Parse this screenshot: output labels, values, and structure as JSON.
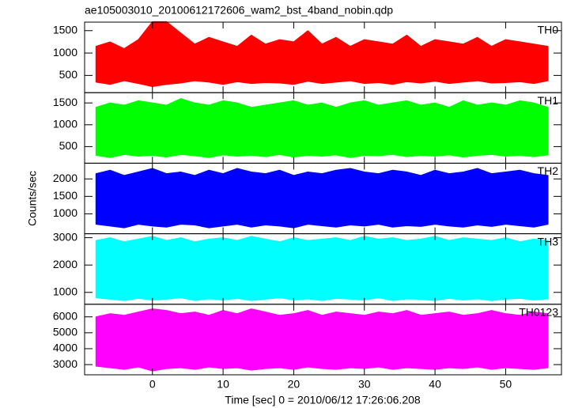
{
  "chart_data": {
    "type": "band",
    "title": "ae105003010_20100612172606_wam2_bst_4band_nobin.qdp",
    "xlabel": "Time [sec] 0 = 2010/06/12 17:26:06.208",
    "ylabel": "Counts/sec",
    "xlim": [
      -9.6,
      57.9
    ],
    "xticks": [
      0,
      10,
      20,
      30,
      40,
      50
    ],
    "x": [
      -8,
      -6,
      -4,
      -2,
      0,
      2,
      4,
      6,
      8,
      10,
      12,
      14,
      16,
      18,
      20,
      22,
      24,
      26,
      28,
      30,
      32,
      34,
      36,
      38,
      40,
      42,
      44,
      46,
      48,
      50,
      52,
      54,
      56
    ],
    "series": [
      {
        "name": "TH0",
        "color": "#ff0000",
        "ylim": [
          115,
          1690
        ],
        "yticks": [
          500,
          1000,
          1500
        ],
        "high": [
          1150,
          1250,
          1100,
          1300,
          1700,
          1700,
          1450,
          1200,
          1350,
          1250,
          1150,
          1400,
          1200,
          1300,
          1250,
          1500,
          1200,
          1350,
          1150,
          1300,
          1250,
          1200,
          1400,
          1150,
          1300,
          1250,
          1200,
          1350,
          1150,
          1300,
          1250,
          1200,
          1150
        ],
        "low": [
          350,
          300,
          380,
          320,
          250,
          300,
          330,
          380,
          350,
          300,
          360,
          320,
          340,
          330,
          300,
          370,
          320,
          350,
          380,
          320,
          340,
          300,
          360,
          330,
          370,
          320,
          350,
          380,
          330,
          340,
          360,
          320,
          380
        ]
      },
      {
        "name": "TH1",
        "color": "#00ff00",
        "ylim": [
          120,
          1735
        ],
        "yticks": [
          500,
          1000,
          1500
        ],
        "high": [
          1400,
          1500,
          1450,
          1550,
          1500,
          1450,
          1600,
          1500,
          1450,
          1550,
          1500,
          1400,
          1450,
          1500,
          1550,
          1450,
          1500,
          1400,
          1500,
          1550,
          1450,
          1500,
          1550,
          1450,
          1500,
          1400,
          1550,
          1450,
          1500,
          1450,
          1550,
          1500,
          1400
        ],
        "low": [
          300,
          250,
          320,
          280,
          300,
          260,
          320,
          290,
          250,
          310,
          280,
          300,
          270,
          320,
          260,
          300,
          280,
          310,
          250,
          300,
          290,
          320,
          270,
          300,
          280,
          310,
          260,
          300,
          320,
          280,
          300,
          270,
          310
        ]
      },
      {
        "name": "TH2",
        "color": "#0000ff",
        "ylim": [
          430,
          2450
        ],
        "yticks": [
          1000,
          1500,
          2000
        ],
        "high": [
          2150,
          2250,
          2100,
          2200,
          2300,
          2150,
          2200,
          2100,
          2250,
          2150,
          2300,
          2200,
          2150,
          2250,
          2100,
          2200,
          2150,
          2250,
          2300,
          2200,
          2150,
          2250,
          2200,
          2100,
          2250,
          2150,
          2200,
          2300,
          2150,
          2200,
          2250,
          2150,
          2100
        ],
        "low": [
          700,
          650,
          600,
          700,
          650,
          620,
          700,
          680,
          600,
          650,
          700,
          620,
          680,
          650,
          600,
          700,
          660,
          620,
          680,
          650,
          700,
          620,
          660,
          640,
          700,
          650,
          620,
          680,
          640,
          700,
          660,
          620,
          700
        ]
      },
      {
        "name": "TH3",
        "color": "#00ffff",
        "ylim": [
          565,
          3145
        ],
        "yticks": [
          1000,
          2000,
          3000
        ],
        "high": [
          2900,
          3000,
          2850,
          2950,
          3050,
          2900,
          3000,
          2850,
          2950,
          3000,
          2900,
          3050,
          2950,
          2850,
          3000,
          2900,
          2950,
          3000,
          2900,
          3050,
          2950,
          3000,
          2900,
          2950,
          3050,
          2900,
          3000,
          2950,
          2900,
          3000,
          2850,
          2950,
          2900
        ],
        "low": [
          800,
          750,
          700,
          780,
          720,
          750,
          800,
          700,
          760,
          720,
          780,
          700,
          750,
          800,
          720,
          760,
          700,
          780,
          750,
          720,
          800,
          700,
          760,
          740,
          700,
          780,
          720,
          760,
          700,
          750,
          780,
          720,
          760
        ]
      },
      {
        "name": "TH0123",
        "color": "#ff00ff",
        "ylim": [
          2360,
          6790
        ],
        "yticks": [
          3000,
          4000,
          5000,
          6000
        ],
        "high": [
          6000,
          6200,
          6100,
          6300,
          6500,
          6400,
          6200,
          6300,
          6100,
          6400,
          6200,
          6500,
          6300,
          6100,
          6200,
          6400,
          6100,
          6300,
          6200,
          6100,
          6300,
          6200,
          6400,
          6100,
          6200,
          6300,
          6100,
          6200,
          6400,
          6200,
          6100,
          6300,
          6200
        ],
        "low": [
          2900,
          2800,
          2700,
          2850,
          2600,
          2750,
          2800,
          2700,
          2850,
          2750,
          2800,
          2650,
          2750,
          2800,
          2700,
          2850,
          2750,
          2700,
          2800,
          2750,
          2850,
          2700,
          2800,
          2750,
          2700,
          2800,
          2750,
          2850,
          2700,
          2800,
          2750,
          2700,
          2800
        ]
      }
    ]
  }
}
